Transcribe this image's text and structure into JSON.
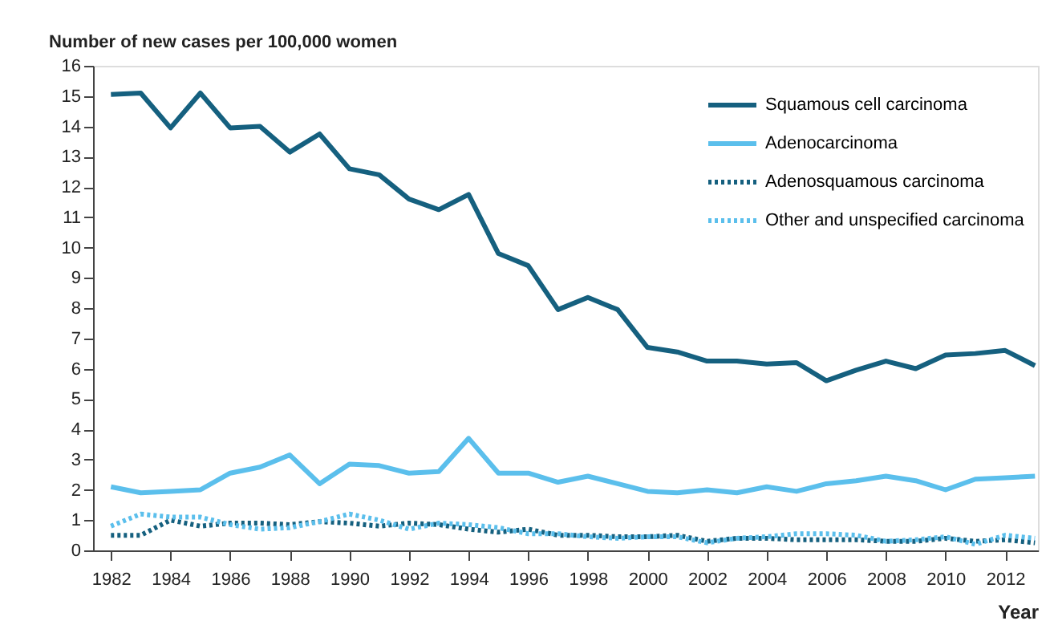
{
  "chart_data": {
    "type": "line",
    "xlabel": "Year",
    "ylabel": "Number of new cases per 100,000 women",
    "x": [
      1982,
      1983,
      1984,
      1985,
      1986,
      1987,
      1988,
      1989,
      1990,
      1991,
      1992,
      1993,
      1994,
      1995,
      1996,
      1997,
      1998,
      1999,
      2000,
      2001,
      2002,
      2003,
      2004,
      2005,
      2006,
      2007,
      2008,
      2009,
      2010,
      2011,
      2012,
      2013
    ],
    "xlim": [
      1981.4,
      2013.1
    ],
    "xticks": [
      1982,
      1984,
      1986,
      1988,
      1990,
      1992,
      1994,
      1996,
      1998,
      2000,
      2002,
      2004,
      2006,
      2008,
      2010,
      2012
    ],
    "ylim": [
      0,
      16
    ],
    "yticks": [
      0,
      1,
      2,
      3,
      4,
      5,
      6,
      7,
      8,
      9,
      10,
      11,
      12,
      13,
      14,
      15,
      16
    ],
    "grid": false,
    "legend": "top right",
    "marker": "none",
    "series": [
      {
        "name": "Squamous cell carcinoma",
        "color": "#15607f",
        "line_style": "solid",
        "values": [
          15.05,
          15.1,
          13.95,
          15.1,
          13.95,
          14.0,
          13.15,
          13.75,
          12.6,
          12.4,
          11.6,
          11.25,
          11.75,
          9.8,
          9.4,
          7.95,
          8.35,
          7.95,
          6.7,
          6.55,
          6.25,
          6.25,
          6.15,
          6.2,
          5.6,
          5.95,
          6.25,
          6.0,
          6.45,
          6.5,
          6.6,
          6.1
        ]
      },
      {
        "name": "Adenocarcinoma",
        "color": "#5bbfec",
        "line_style": "solid",
        "values": [
          2.1,
          1.9,
          1.95,
          2.0,
          2.55,
          2.75,
          3.15,
          2.2,
          2.85,
          2.8,
          2.55,
          2.6,
          3.7,
          2.55,
          2.55,
          2.25,
          2.45,
          2.2,
          1.95,
          1.9,
          2.0,
          1.9,
          2.1,
          1.95,
          2.2,
          2.3,
          2.45,
          2.3,
          2.0,
          2.35,
          2.4,
          2.45
        ]
      },
      {
        "name": "Adenosquamous carcinoma",
        "color": "#15607f",
        "line_style": "dotted",
        "values": [
          0.5,
          0.5,
          1.0,
          0.8,
          0.9,
          0.9,
          0.85,
          0.95,
          0.9,
          0.8,
          0.9,
          0.85,
          0.7,
          0.6,
          0.7,
          0.5,
          0.5,
          0.45,
          0.45,
          0.5,
          0.3,
          0.4,
          0.4,
          0.35,
          0.35,
          0.35,
          0.3,
          0.3,
          0.4,
          0.3,
          0.35,
          0.25
        ]
      },
      {
        "name": "Other and unspecified carcinoma",
        "color": "#5bbfec",
        "line_style": "dotted",
        "values": [
          0.8,
          1.2,
          1.1,
          1.1,
          0.85,
          0.7,
          0.75,
          0.95,
          1.2,
          1.0,
          0.7,
          0.9,
          0.85,
          0.75,
          0.55,
          0.55,
          0.45,
          0.4,
          0.45,
          0.45,
          0.25,
          0.4,
          0.45,
          0.55,
          0.55,
          0.5,
          0.3,
          0.35,
          0.45,
          0.2,
          0.5,
          0.4
        ]
      }
    ]
  }
}
